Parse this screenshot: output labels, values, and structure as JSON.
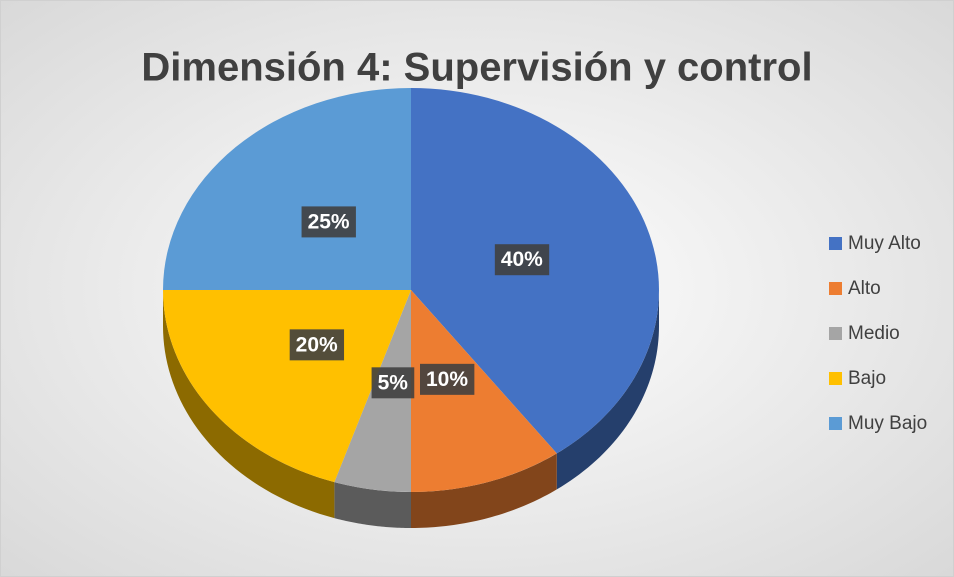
{
  "chart_data": {
    "type": "pie",
    "title": "Dimensión 4: Supervisión y control",
    "categories": [
      "Muy Alto",
      "Alto",
      "Medio",
      "Bajo",
      "Muy Bajo"
    ],
    "values": [
      40,
      10,
      5,
      20,
      25
    ],
    "value_labels": [
      "40%",
      "10%",
      "5%",
      "20%",
      "25%"
    ],
    "colors": [
      "#4472c4",
      "#ed7d31",
      "#a5a5a5",
      "#ffc000",
      "#5b9bd5"
    ],
    "legend": "right"
  }
}
